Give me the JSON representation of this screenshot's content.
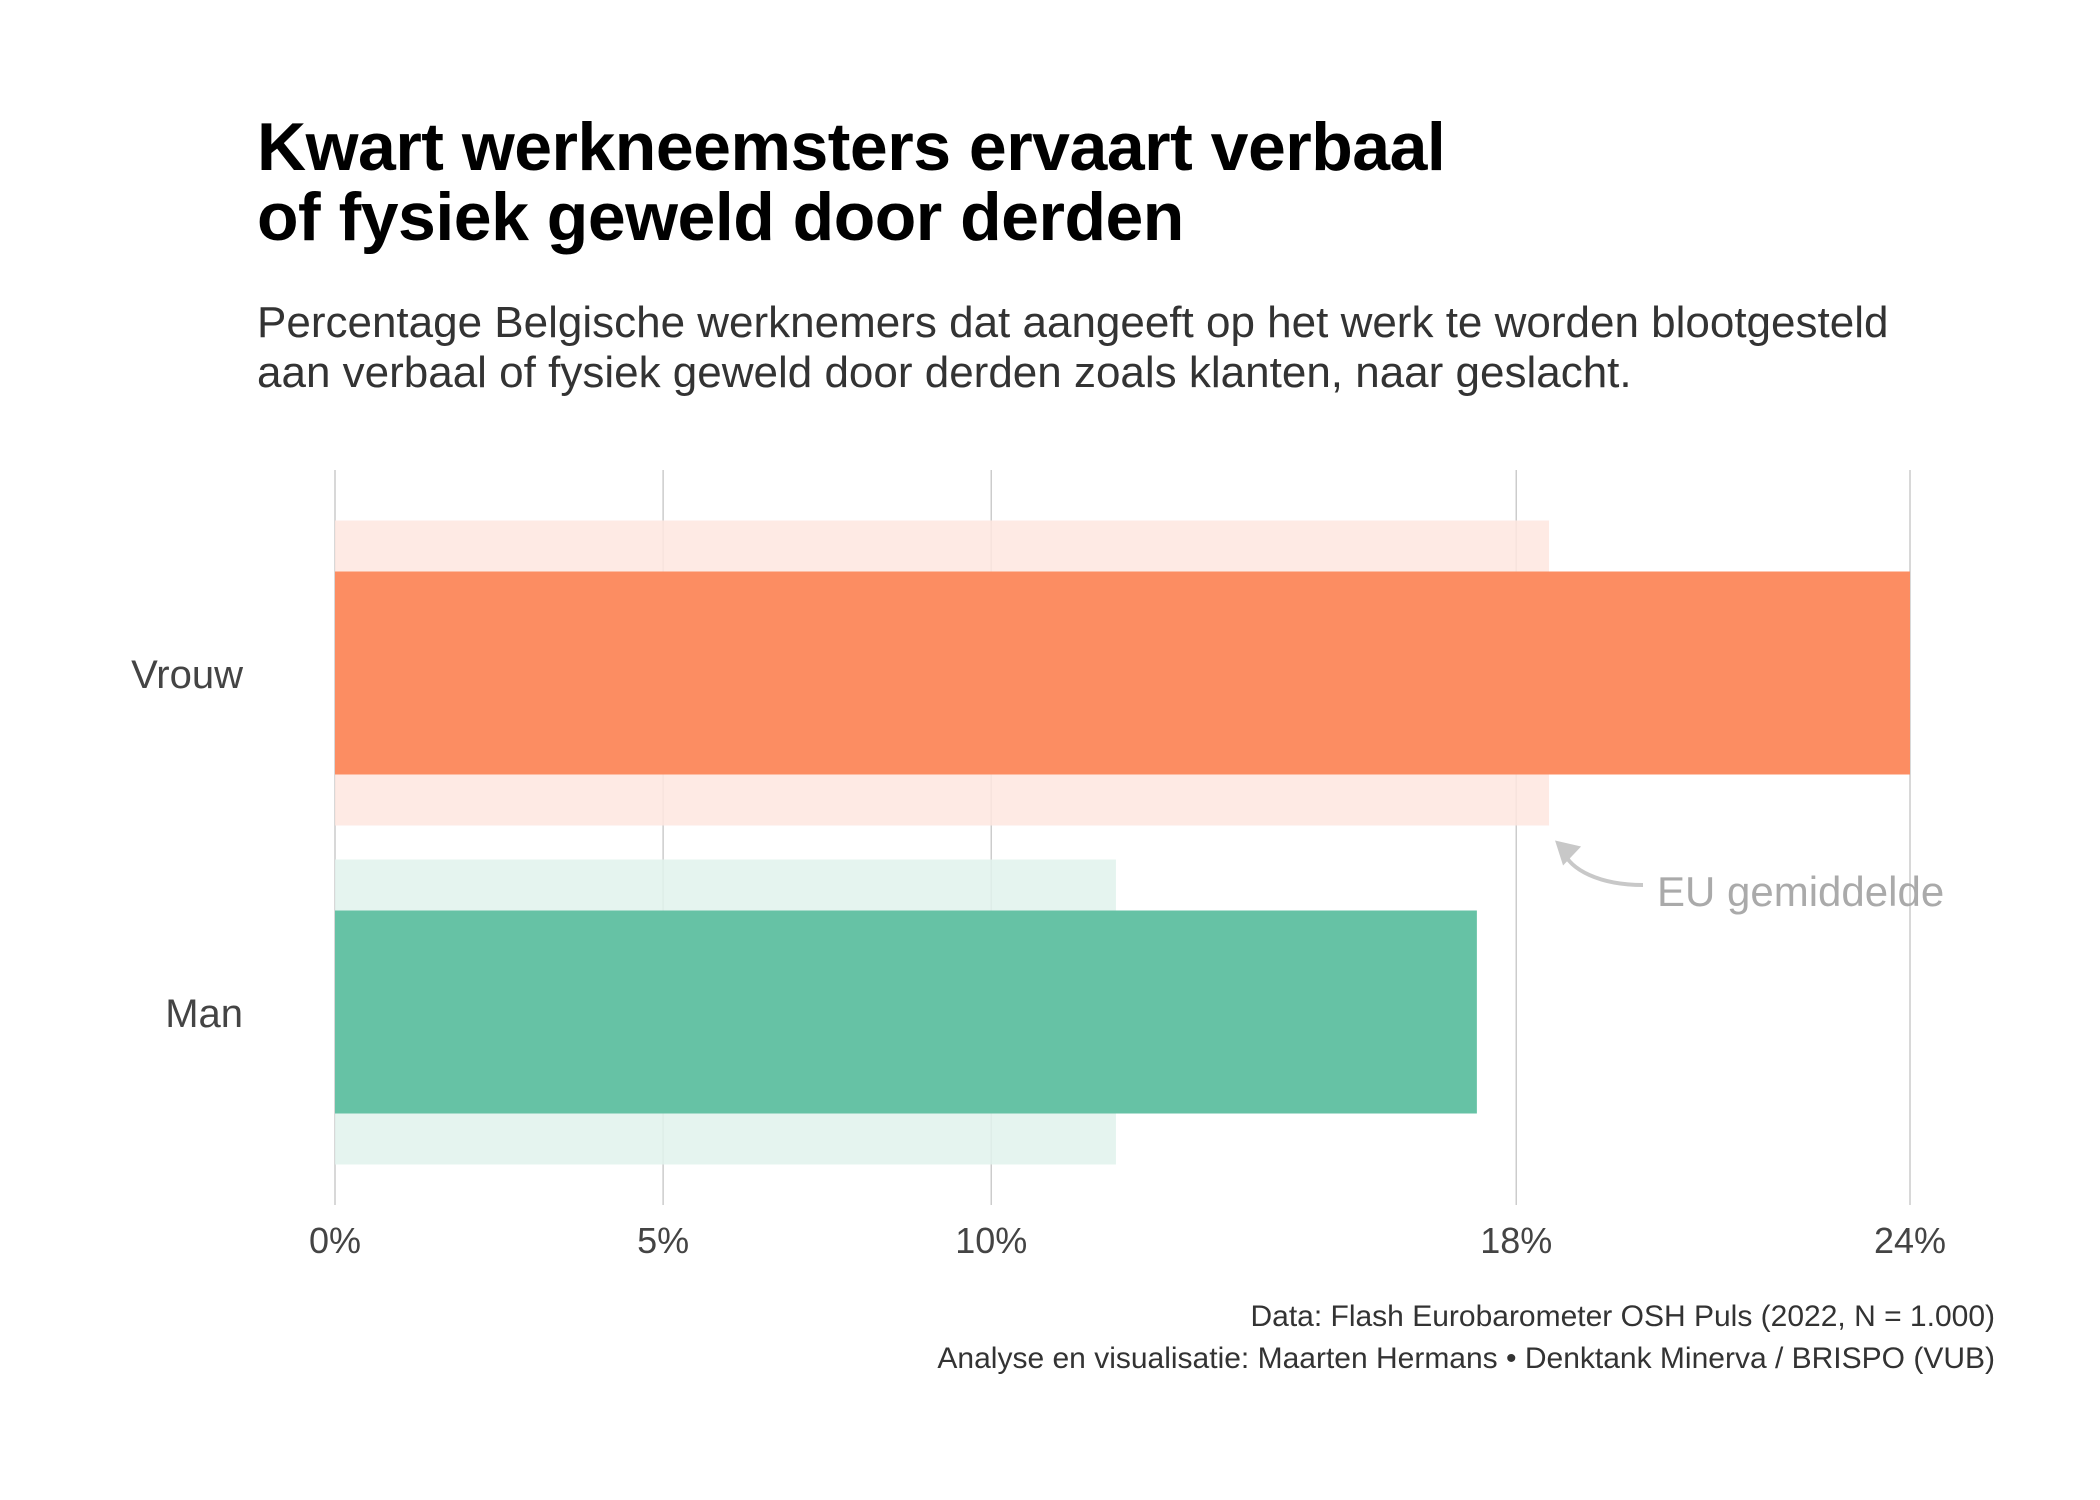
{
  "title_lines": [
    "Kwart werkneemsters ervaart verbaal",
    "of fysiek geweld door derden"
  ],
  "subtitle_lines": [
    "Percentage Belgische werknemers dat aangeeft op het werk te worden blootgesteld",
    "aan verbaal of fysiek geweld door derden zoals klanten, naar geslacht."
  ],
  "caption_lines": [
    "Data: Flash Eurobarometer OSH Puls (2022, N = 1.000)",
    "Analyse en visualisatie: Maarten Hermans • Denktank Minerva / BRISPO (VUB)"
  ],
  "chart_data": {
    "type": "bar",
    "orientation": "horizontal",
    "categories": [
      "Vrouw",
      "Man"
    ],
    "series": [
      {
        "values": [
          24,
          17.4
        ]
      },
      {
        "values": [
          18.5,
          11.9
        ]
      }
    ],
    "xlim": [
      0,
      24
    ],
    "xticks": [
      0,
      5,
      10,
      18,
      24
    ],
    "xtick_labels": [
      "0%",
      "5%",
      "10%",
      "18%",
      "24%"
    ],
    "colors": {
      "Vrouw": "#fc8d62",
      "Vrouw_eu": "#fee6df",
      "Man": "#66c2a5",
      "Man_eu": "#e0f2ec",
      "grid": "#cccccc",
      "annotation": "#aaaaaa"
    },
    "annotation": {
      "text": "EU gemiddelde",
      "category": "Vrouw"
    },
    "grid": true
  }
}
